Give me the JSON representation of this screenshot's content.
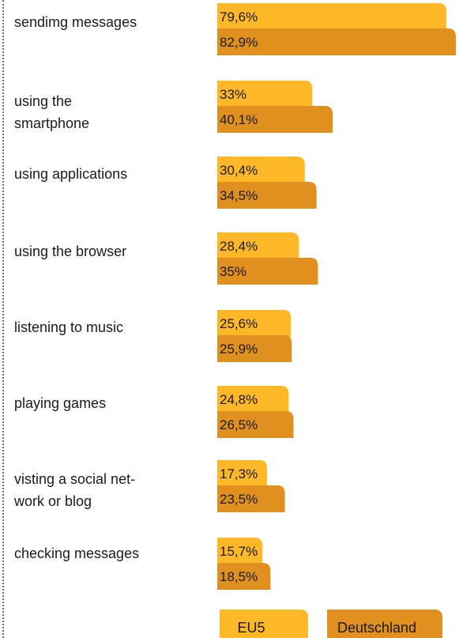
{
  "chart_data": {
    "type": "bar",
    "orientation": "horizontal",
    "categories": [
      "sendimg messages",
      "using the\nsmartphone",
      "using applications",
      "using the browser",
      "listening to music",
      "playing games",
      "visting a social net-\nwork  or blog",
      "checking messages"
    ],
    "series": [
      {
        "name": "EU5",
        "color": "#FDB827",
        "values": [
          79.6,
          33,
          30.4,
          28.4,
          25.6,
          24.8,
          17.3,
          15.7
        ],
        "labels": [
          "79,6%",
          "33%",
          "30,4%",
          "28,4%",
          "25,6%",
          "24,8%",
          "17,3%",
          "15,7%"
        ]
      },
      {
        "name": "Deutschland",
        "color": "#E0901E",
        "values": [
          82.9,
          40.1,
          34.5,
          35,
          25.9,
          26.5,
          23.5,
          18.5
        ],
        "labels": [
          "82,9%",
          "40,1%",
          "34,5%",
          "35%",
          "25,9%",
          "26,5%",
          "23,5%",
          "18,5%"
        ]
      }
    ],
    "legend_position": "bottom",
    "grid": false
  }
}
